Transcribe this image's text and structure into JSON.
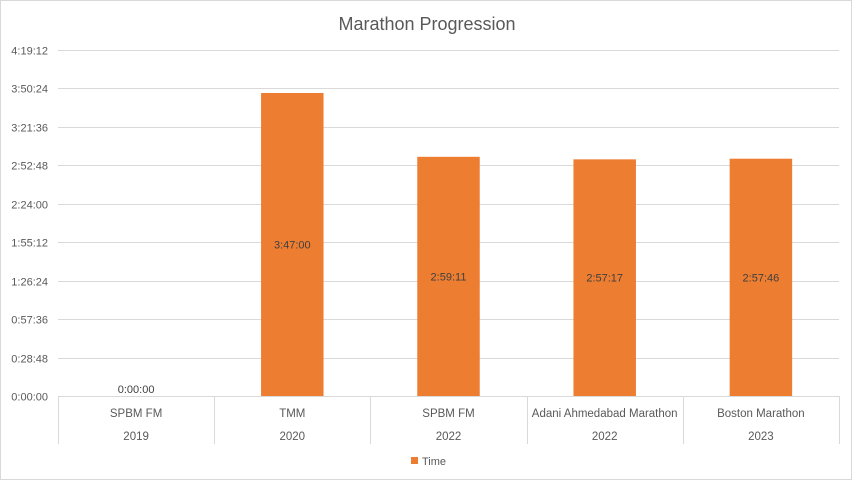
{
  "chart_data": {
    "type": "bar",
    "title": "Marathon Progression",
    "xlabel": "",
    "ylabel": "",
    "categories": [
      {
        "name": "SPBM FM",
        "year": "2019"
      },
      {
        "name": "TMM",
        "year": "2020"
      },
      {
        "name": "SPBM FM",
        "year": "2022"
      },
      {
        "name": "Adani Ahmedabad Marathon",
        "year": "2022"
      },
      {
        "name": "Boston Marathon",
        "year": "2023"
      }
    ],
    "series": [
      {
        "name": "Time",
        "color": "#ed7d31",
        "values_seconds": [
          0,
          13620,
          10751,
          10637,
          10666
        ],
        "data_labels": [
          "0:00:00",
          "3:47:00",
          "2:59:11",
          "2:57:17",
          "2:57:46"
        ]
      }
    ],
    "y_axis": {
      "min_seconds": 0,
      "max_seconds": 15552,
      "step_seconds": 1728,
      "tick_labels": [
        "0:00:00",
        "0:28:48",
        "0:57:36",
        "1:26:24",
        "1:55:12",
        "2:24:00",
        "2:52:48",
        "3:21:36",
        "3:50:24",
        "4:19:12"
      ]
    },
    "grid": true,
    "legend_position": "bottom"
  }
}
